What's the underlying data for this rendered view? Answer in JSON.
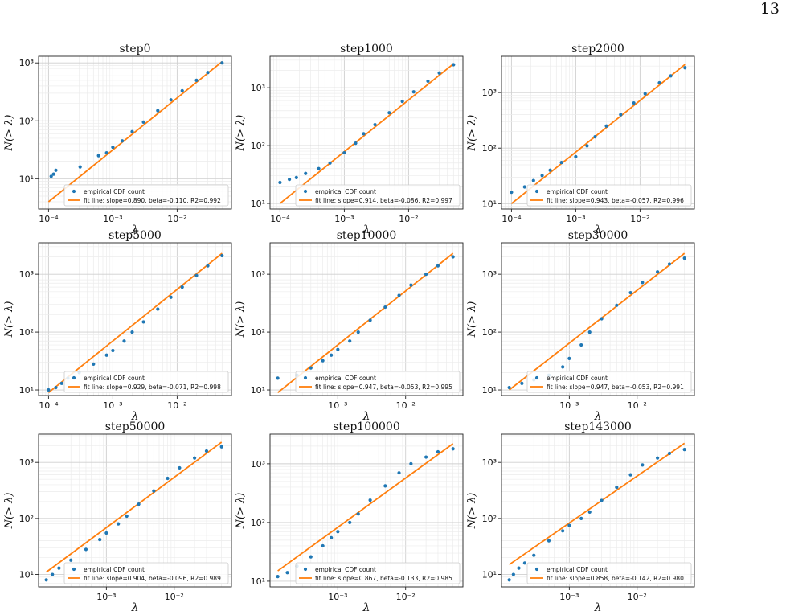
{
  "page": {
    "number": "13"
  },
  "chart_data": [
    {
      "type": "scatter",
      "title": "step0",
      "xlabel": "λ",
      "ylabel": "N(> λ)",
      "xscale": "log",
      "yscale": "log",
      "xlim": [
        7e-05,
        0.07
      ],
      "ylim": [
        3,
        1300
      ],
      "grid": true,
      "legend": "lower-right",
      "legend_entries": [
        "empirical CDF count",
        "fit line: slope=0.890, beta=-0.110, R2=0.992"
      ],
      "colors": {
        "empirical": "#1f77b4",
        "fit": "#ff7f0e"
      },
      "x_ticks": [
        0.0001,
        0.001,
        0.01
      ],
      "x_tick_labels": [
        "10⁻⁴",
        "10⁻³",
        "10⁻²"
      ],
      "y_ticks": [
        10,
        100,
        1000
      ],
      "y_tick_labels": [
        "10¹",
        "10²",
        "10³"
      ],
      "fit_line": {
        "x": [
          0.0001,
          0.05
        ],
        "y": [
          4,
          1050
        ]
      },
      "series": [
        {
          "name": "empirical CDF count",
          "x": [
            0.00011,
            0.00012,
            0.00013,
            0.00031,
            0.0006,
            0.0008,
            0.001,
            0.0014,
            0.002,
            0.003,
            0.005,
            0.008,
            0.012,
            0.02,
            0.03,
            0.05
          ],
          "y": [
            11,
            12,
            14,
            16,
            25,
            28,
            35,
            45,
            65,
            95,
            150,
            230,
            330,
            500,
            680,
            1000
          ]
        }
      ]
    },
    {
      "type": "scatter",
      "title": "step1000",
      "xlabel": "λ",
      "ylabel": "N(> λ)",
      "xscale": "log",
      "yscale": "log",
      "xlim": [
        7e-05,
        0.07
      ],
      "ylim": [
        8,
        3500
      ],
      "grid": true,
      "legend": "lower-right",
      "legend_entries": [
        "empirical CDF count",
        "fit line: slope=0.914, beta=-0.086, R2=0.997"
      ],
      "colors": {
        "empirical": "#1f77b4",
        "fit": "#ff7f0e"
      },
      "x_ticks": [
        0.0001,
        0.001,
        0.01
      ],
      "x_tick_labels": [
        "10⁻⁴",
        "10⁻³",
        "10⁻²"
      ],
      "y_ticks": [
        10,
        100,
        1000
      ],
      "y_tick_labels": [
        "10¹",
        "10²",
        "10³"
      ],
      "fit_line": {
        "x": [
          0.0001,
          0.05
        ],
        "y": [
          10,
          2600
        ]
      },
      "series": [
        {
          "name": "empirical CDF count",
          "x": [
            0.0001,
            0.00014,
            0.00018,
            0.00025,
            0.0004,
            0.0006,
            0.001,
            0.0015,
            0.002,
            0.003,
            0.005,
            0.008,
            0.012,
            0.02,
            0.03,
            0.05
          ],
          "y": [
            23,
            26,
            28,
            33,
            40,
            50,
            75,
            110,
            160,
            230,
            370,
            580,
            850,
            1300,
            1800,
            2500
          ]
        }
      ]
    },
    {
      "type": "scatter",
      "title": "step2000",
      "xlabel": "λ",
      "ylabel": "N(> λ)",
      "xscale": "log",
      "yscale": "log",
      "xlim": [
        7e-05,
        0.07
      ],
      "ylim": [
        8,
        4500
      ],
      "grid": true,
      "legend": "lower-right",
      "legend_entries": [
        "empirical CDF count",
        "fit line: slope=0.943, beta=-0.057, R2=0.996"
      ],
      "colors": {
        "empirical": "#1f77b4",
        "fit": "#ff7f0e"
      },
      "x_ticks": [
        0.0001,
        0.001,
        0.01
      ],
      "x_tick_labels": [
        "10⁻⁴",
        "10⁻³",
        "10⁻²"
      ],
      "y_ticks": [
        10,
        100,
        1000
      ],
      "y_tick_labels": [
        "10¹",
        "10²",
        "10³"
      ],
      "fit_line": {
        "x": [
          0.0001,
          0.05
        ],
        "y": [
          10,
          3200
        ]
      },
      "series": [
        {
          "name": "empirical CDF count",
          "x": [
            0.0001,
            0.00016,
            0.00022,
            0.0003,
            0.0004,
            0.0006,
            0.001,
            0.0015,
            0.002,
            0.003,
            0.005,
            0.008,
            0.012,
            0.02,
            0.03,
            0.05
          ],
          "y": [
            16,
            20,
            26,
            32,
            40,
            55,
            70,
            110,
            160,
            250,
            400,
            650,
            950,
            1500,
            2000,
            2800
          ]
        }
      ]
    },
    {
      "type": "scatter",
      "title": "step5000",
      "xlabel": "λ",
      "ylabel": "N(> λ)",
      "xscale": "log",
      "yscale": "log",
      "xlim": [
        7e-05,
        0.07
      ],
      "ylim": [
        8,
        3500
      ],
      "grid": true,
      "legend": "lower-right",
      "legend_entries": [
        "empirical CDF count",
        "fit line: slope=0.929, beta=-0.071, R2=0.998"
      ],
      "colors": {
        "empirical": "#1f77b4",
        "fit": "#ff7f0e"
      },
      "x_ticks": [
        0.0001,
        0.001,
        0.01
      ],
      "x_tick_labels": [
        "10⁻⁴",
        "10⁻³",
        "10⁻²"
      ],
      "y_ticks": [
        10,
        100,
        1000
      ],
      "y_tick_labels": [
        "10¹",
        "10²",
        "10³"
      ],
      "fit_line": {
        "x": [
          0.0001,
          0.05
        ],
        "y": [
          9,
          2300
        ]
      },
      "series": [
        {
          "name": "empirical CDF count",
          "x": [
            0.0001,
            0.00013,
            0.00016,
            0.0002,
            0.0003,
            0.0005,
            0.0008,
            0.001,
            0.0015,
            0.002,
            0.003,
            0.005,
            0.008,
            0.012,
            0.02,
            0.03,
            0.05
          ],
          "y": [
            10,
            11,
            13,
            16,
            20,
            28,
            40,
            48,
            70,
            100,
            150,
            250,
            400,
            600,
            950,
            1400,
            2100
          ]
        }
      ]
    },
    {
      "type": "scatter",
      "title": "step10000",
      "xlabel": "λ",
      "ylabel": "N(> λ)",
      "xscale": "log",
      "yscale": "log",
      "xlim": [
        0.0001,
        0.07
      ],
      "ylim": [
        8,
        3500
      ],
      "grid": true,
      "legend": "lower-right",
      "legend_entries": [
        "empirical CDF count",
        "fit line: slope=0.947, beta=-0.053, R2=0.995"
      ],
      "colors": {
        "empirical": "#1f77b4",
        "fit": "#ff7f0e"
      },
      "x_ticks": [
        0.001,
        0.01
      ],
      "x_tick_labels": [
        "10⁻³",
        "10⁻²"
      ],
      "y_ticks": [
        10,
        100,
        1000
      ],
      "y_tick_labels": [
        "10¹",
        "10²",
        "10³"
      ],
      "fit_line": {
        "x": [
          0.00013,
          0.05
        ],
        "y": [
          9,
          2300
        ]
      },
      "series": [
        {
          "name": "empirical CDF count",
          "x": [
            0.00013,
            0.00025,
            0.0004,
            0.0006,
            0.0008,
            0.001,
            0.0015,
            0.002,
            0.003,
            0.005,
            0.008,
            0.012,
            0.02,
            0.03,
            0.05
          ],
          "y": [
            16,
            18,
            24,
            32,
            40,
            50,
            70,
            100,
            160,
            270,
            430,
            650,
            1000,
            1400,
            2000
          ]
        }
      ]
    },
    {
      "type": "scatter",
      "title": "step30000",
      "xlabel": "λ",
      "ylabel": "N(> λ)",
      "xscale": "log",
      "yscale": "log",
      "xlim": [
        0.0001,
        0.07
      ],
      "ylim": [
        8,
        3500
      ],
      "grid": true,
      "legend": "lower-right",
      "legend_entries": [
        "empirical CDF count",
        "fit line: slope=0.947, beta=-0.053, R2=0.991"
      ],
      "colors": {
        "empirical": "#1f77b4",
        "fit": "#ff7f0e"
      },
      "x_ticks": [
        0.001,
        0.01
      ],
      "x_tick_labels": [
        "10⁻³",
        "10⁻²"
      ],
      "y_ticks": [
        10,
        100,
        1000
      ],
      "y_tick_labels": [
        "10¹",
        "10²",
        "10³"
      ],
      "fit_line": {
        "x": [
          0.00013,
          0.05
        ],
        "y": [
          10,
          2300
        ]
      },
      "series": [
        {
          "name": "empirical CDF count",
          "x": [
            0.00013,
            0.0002,
            0.0003,
            0.0005,
            0.0008,
            0.001,
            0.0015,
            0.002,
            0.003,
            0.005,
            0.008,
            0.012,
            0.02,
            0.03,
            0.05
          ],
          "y": [
            11,
            13,
            15,
            18,
            25,
            35,
            60,
            100,
            170,
            290,
            480,
            720,
            1100,
            1500,
            1900
          ]
        }
      ]
    },
    {
      "type": "scatter",
      "title": "step50000",
      "xlabel": "λ",
      "ylabel": "N(> λ)",
      "xscale": "log",
      "yscale": "log",
      "xlim": [
        0.0001,
        0.07
      ],
      "ylim": [
        6,
        3200
      ],
      "grid": true,
      "legend": "lower-right",
      "legend_entries": [
        "empirical CDF count",
        "fit line: slope=0.904, beta=-0.096, R2=0.989"
      ],
      "colors": {
        "empirical": "#1f77b4",
        "fit": "#ff7f0e"
      },
      "x_ticks": [
        0.001,
        0.01
      ],
      "x_tick_labels": [
        "10⁻³",
        "10⁻²"
      ],
      "y_ticks": [
        10,
        100,
        1000
      ],
      "y_tick_labels": [
        "10¹",
        "10²",
        "10³"
      ],
      "fit_line": {
        "x": [
          0.00013,
          0.05
        ],
        "y": [
          11,
          2300
        ]
      },
      "series": [
        {
          "name": "empirical CDF count",
          "x": [
            0.00013,
            0.00016,
            0.0002,
            0.0003,
            0.0005,
            0.0008,
            0.001,
            0.0015,
            0.002,
            0.003,
            0.005,
            0.008,
            0.012,
            0.02,
            0.03,
            0.05
          ],
          "y": [
            8,
            10,
            13,
            18,
            28,
            42,
            55,
            80,
            110,
            180,
            310,
            520,
            800,
            1200,
            1600,
            1900
          ]
        }
      ]
    },
    {
      "type": "scatter",
      "title": "step100000",
      "xlabel": "λ",
      "ylabel": "N(> λ)",
      "xscale": "log",
      "yscale": "log",
      "xlim": [
        0.0001,
        0.07
      ],
      "ylim": [
        8,
        3200
      ],
      "grid": true,
      "legend": "lower-right",
      "legend_entries": [
        "empirical CDF count",
        "fit line: slope=0.867, beta=-0.133, R2=0.985"
      ],
      "colors": {
        "empirical": "#1f77b4",
        "fit": "#ff7f0e"
      },
      "x_ticks": [
        0.001,
        0.01
      ],
      "x_tick_labels": [
        "10⁻³",
        "10⁻²"
      ],
      "y_ticks": [
        10,
        100,
        1000
      ],
      "y_tick_labels": [
        "10¹",
        "10²",
        "10³"
      ],
      "fit_line": {
        "x": [
          0.00013,
          0.05
        ],
        "y": [
          15,
          2200
        ]
      },
      "series": [
        {
          "name": "empirical CDF count",
          "x": [
            0.00013,
            0.00018,
            0.00025,
            0.0004,
            0.0006,
            0.0008,
            0.001,
            0.0015,
            0.002,
            0.003,
            0.005,
            0.008,
            0.012,
            0.02,
            0.03,
            0.05
          ],
          "y": [
            12,
            14,
            18,
            26,
            40,
            55,
            70,
            100,
            140,
            240,
            420,
            700,
            1000,
            1300,
            1600,
            1800
          ]
        }
      ]
    },
    {
      "type": "scatter",
      "title": "step143000",
      "xlabel": "λ",
      "ylabel": "N(> λ)",
      "xscale": "log",
      "yscale": "log",
      "xlim": [
        0.0001,
        0.07
      ],
      "ylim": [
        6,
        3200
      ],
      "grid": true,
      "legend": "lower-right",
      "legend_entries": [
        "empirical CDF count",
        "fit line: slope=0.858, beta=-0.142, R2=0.980"
      ],
      "colors": {
        "empirical": "#1f77b4",
        "fit": "#ff7f0e"
      },
      "x_ticks": [
        0.001,
        0.01
      ],
      "x_tick_labels": [
        "10⁻³",
        "10⁻²"
      ],
      "y_ticks": [
        10,
        100,
        1000
      ],
      "y_tick_labels": [
        "10¹",
        "10²",
        "10³"
      ],
      "fit_line": {
        "x": [
          0.00013,
          0.05
        ],
        "y": [
          15,
          2200
        ]
      },
      "series": [
        {
          "name": "empirical CDF count",
          "x": [
            0.00013,
            0.00015,
            0.00018,
            0.00022,
            0.0003,
            0.0005,
            0.0008,
            0.001,
            0.0015,
            0.002,
            0.003,
            0.005,
            0.008,
            0.012,
            0.02,
            0.03,
            0.05
          ],
          "y": [
            8,
            10,
            13,
            16,
            22,
            40,
            60,
            75,
            100,
            130,
            210,
            360,
            600,
            900,
            1200,
            1450,
            1700
          ]
        }
      ]
    }
  ]
}
